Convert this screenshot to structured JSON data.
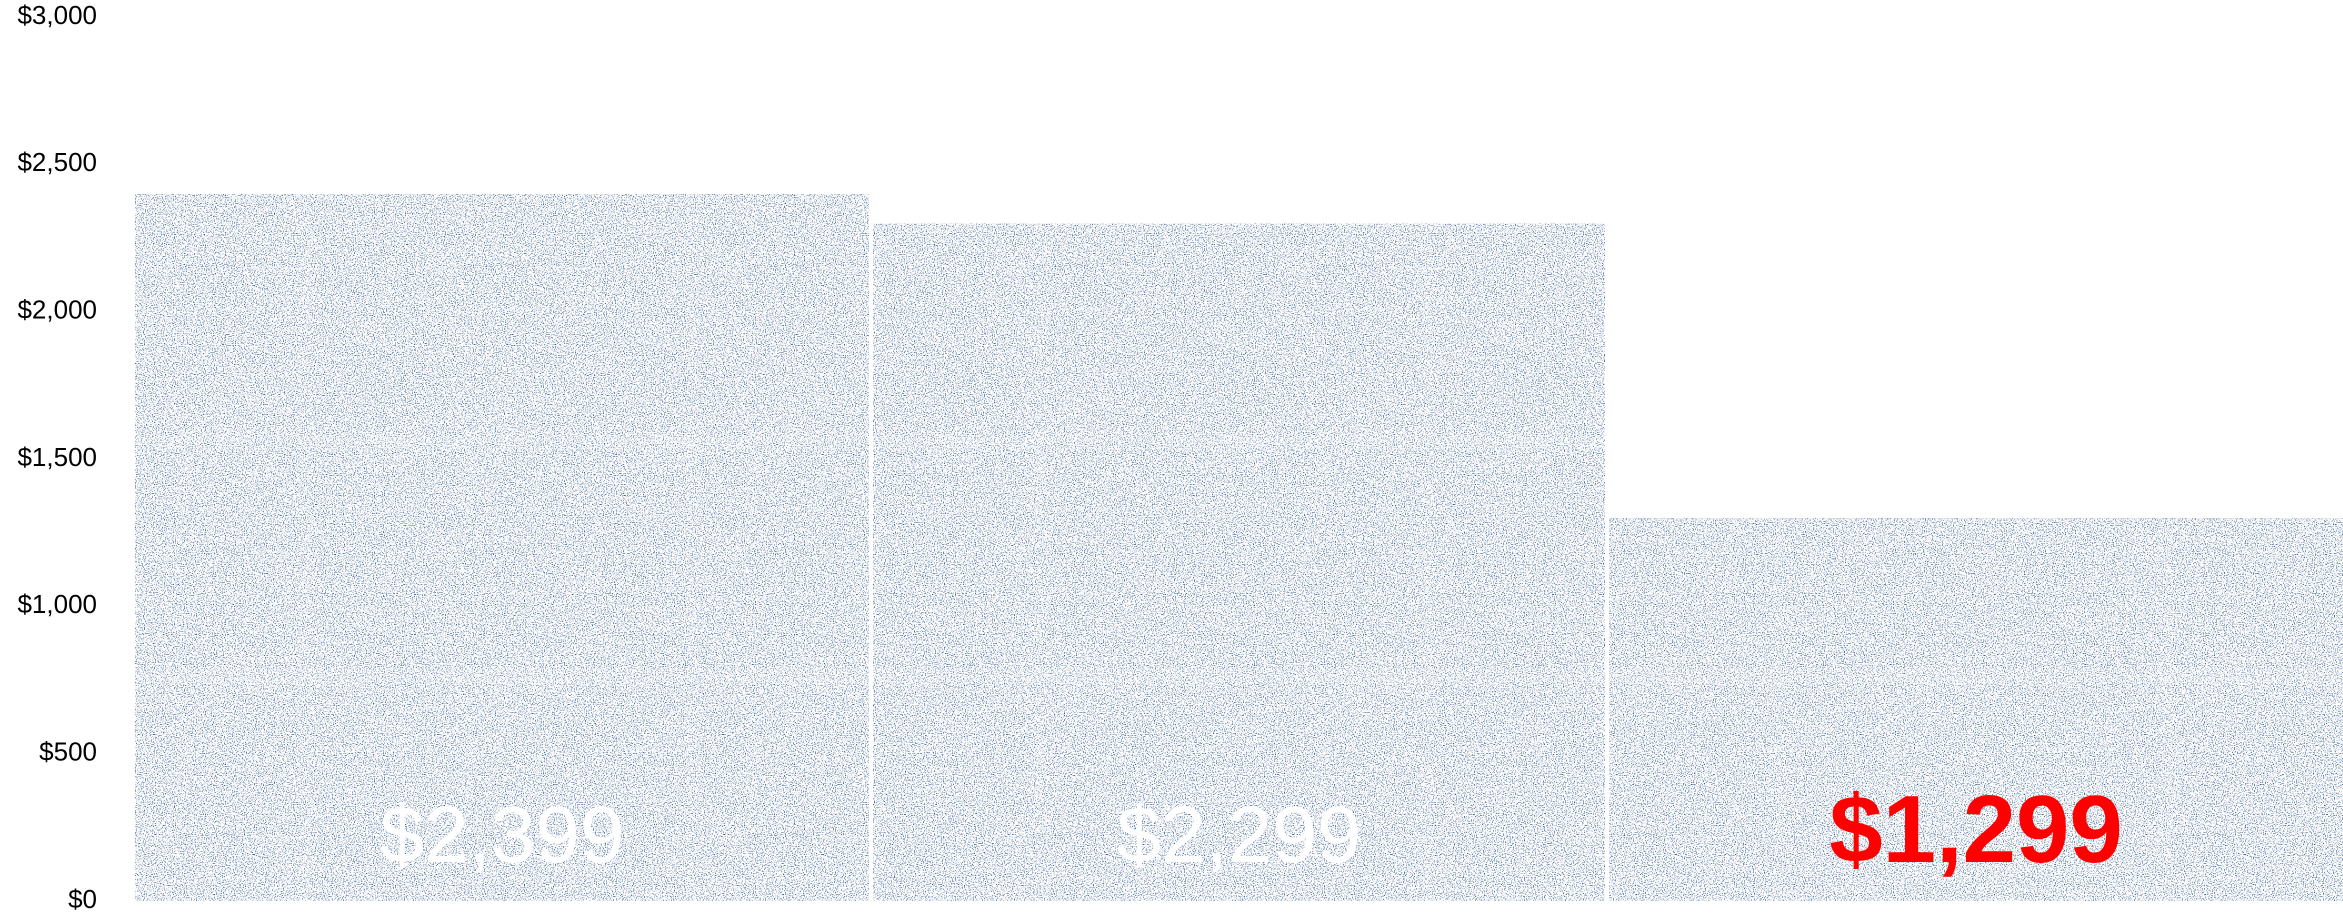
{
  "chart_data": {
    "type": "bar",
    "categories": [
      "",
      "",
      ""
    ],
    "values": [
      2399,
      2299,
      1299
    ],
    "data_labels": [
      "$2,399",
      "$2,299",
      "$1,299"
    ],
    "data_label_colors": [
      "#ffffff",
      "#ffffff",
      "#ff0000"
    ],
    "data_label_bold": [
      false,
      false,
      true
    ],
    "title": "",
    "xlabel": "",
    "ylabel": "",
    "ylim": [
      0,
      3000
    ],
    "y_ticks": [
      0,
      500,
      1000,
      1500,
      2000,
      2500,
      3000
    ],
    "y_tick_labels": [
      "$0",
      "$500",
      "$1,000",
      "$1,500",
      "$2,000",
      "$2,500",
      "$3,000"
    ],
    "grid": false,
    "legend": "none",
    "bar_color": "#336699",
    "bar_texture": "distressed-white-speckle"
  }
}
